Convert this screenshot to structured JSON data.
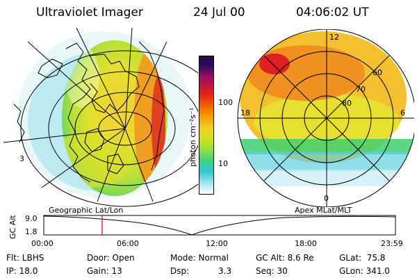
{
  "header": {
    "instrument": "Ultraviolet Imager",
    "date": "24 Jul 00",
    "time": "04:06:02 UT"
  },
  "colorbar": {
    "unit_label": "photon cm⁻²s⁻¹",
    "tick_100": "100",
    "tick_10": "10"
  },
  "left_panel": {
    "caption": "Geographic Lat/Lon",
    "side_mark": "3"
  },
  "right_panel": {
    "caption": "Apex MLat/MLT",
    "mlt_12": "12",
    "mlt_18": "18",
    "mlt_6": "6",
    "mlt_0": "0",
    "lat_60": "60",
    "lat_70": "70",
    "lat_80": "80"
  },
  "altitude_plot": {
    "ylabel": "GC Alt",
    "ytick_top": "9.0",
    "ytick_bottom": "1.8",
    "xticks": [
      "00:00",
      "06:00",
      "12:00",
      "18:00",
      "23:59"
    ]
  },
  "info": {
    "flt": "Flt: LBHS",
    "ip": "IP: 18.0",
    "door": "Door: Open",
    "gain": "Gain: 13",
    "mode": "Mode: Normal",
    "dsp_label": "Dsp:",
    "dsp_value": "3.3",
    "gcalt": "GC Alt: 8.6 Re",
    "seq": "Seq: 30",
    "glat": "GLat:  75.8",
    "glon": "GLon: 341.0"
  },
  "colors": {
    "marker": "#d00000",
    "background": "#ffffff"
  }
}
